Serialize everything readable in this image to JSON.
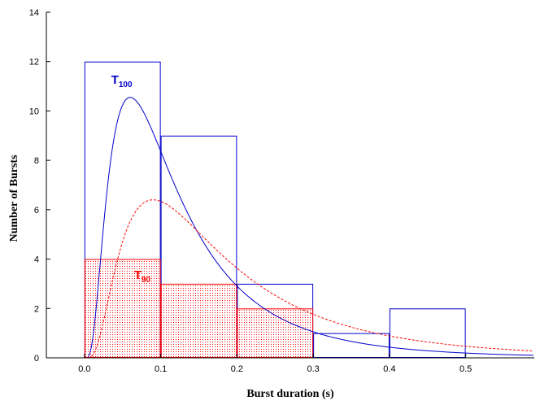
{
  "chart_data": {
    "type": "bar",
    "xlabel": "Burst duration (s)",
    "ylabel": "Number of Bursts",
    "xlim": [
      -0.05,
      0.59
    ],
    "ylim": [
      0,
      14
    ],
    "xticks": [
      "0.0",
      "0.1",
      "0.2",
      "0.3",
      "0.4",
      "0.5"
    ],
    "yticks": [
      "0",
      "2",
      "4",
      "6",
      "8",
      "10",
      "12",
      "14"
    ],
    "grid": false,
    "bin_edges": [
      0.0,
      0.1,
      0.2,
      0.3,
      0.4,
      0.5
    ],
    "series": [
      {
        "key": "t100",
        "color": "#0000cc",
        "values": [
          12,
          9,
          3,
          1,
          2
        ],
        "fit_curve": {
          "style": "solid",
          "peak_x": 0.06,
          "peak_y": 10.55
        }
      },
      {
        "key": "t90",
        "color": "#ff0000",
        "values": [
          4,
          3,
          2,
          0,
          0
        ],
        "fill": "dotted",
        "fit_curve": {
          "style": "dashed",
          "peak_x": 0.09,
          "peak_y": 6.4
        }
      }
    ],
    "annotations": [
      {
        "key": "t100",
        "text": "T",
        "sub": "100",
        "color": "#0000cc",
        "x": 0.035,
        "y": 11.1
      },
      {
        "key": "t90",
        "text": "T",
        "sub": "90",
        "color": "#ff0000",
        "x": 0.065,
        "y": 3.2
      }
    ]
  }
}
